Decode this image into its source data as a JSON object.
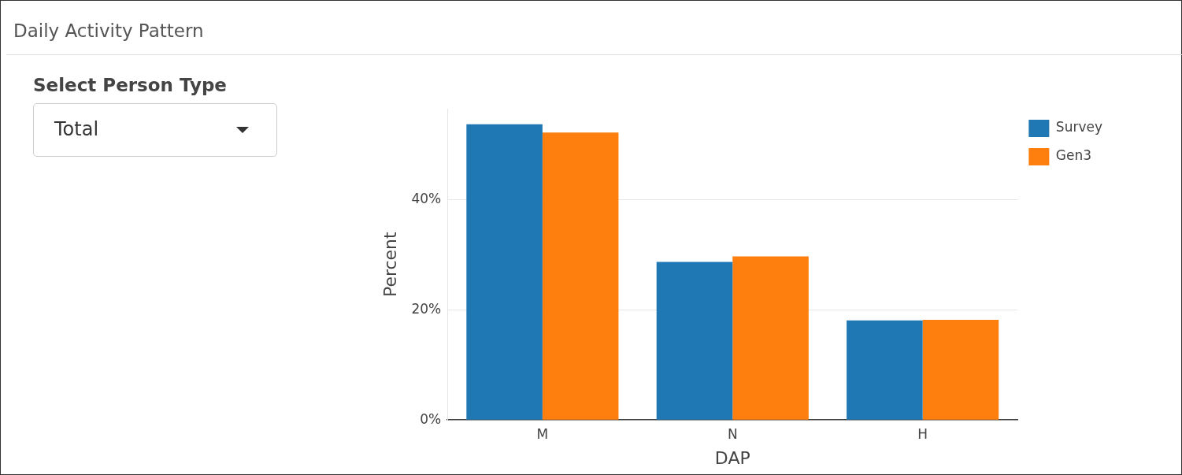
{
  "chart_data": {
    "type": "bar",
    "title": "Daily Activity Pattern",
    "xlabel": "DAP",
    "ylabel": "Percent",
    "annotations": [
      "Select Person Type",
      "Total"
    ],
    "categories": [
      "M",
      "N",
      "H"
    ],
    "series": [
      {
        "name": "Survey",
        "color": "#1f77b4",
        "values": [
          53.7,
          28.7,
          18.1
        ]
      },
      {
        "name": "Gen3",
        "color": "#ff7f0e",
        "values": [
          52.2,
          29.7,
          18.2
        ]
      }
    ],
    "ylim": [
      0,
      56.5
    ],
    "yticks": [
      {
        "value": 0,
        "label": "0%"
      },
      {
        "value": 20,
        "label": "20%"
      },
      {
        "value": 40,
        "label": "40%"
      }
    ],
    "grid": "y",
    "legend": "top right"
  }
}
